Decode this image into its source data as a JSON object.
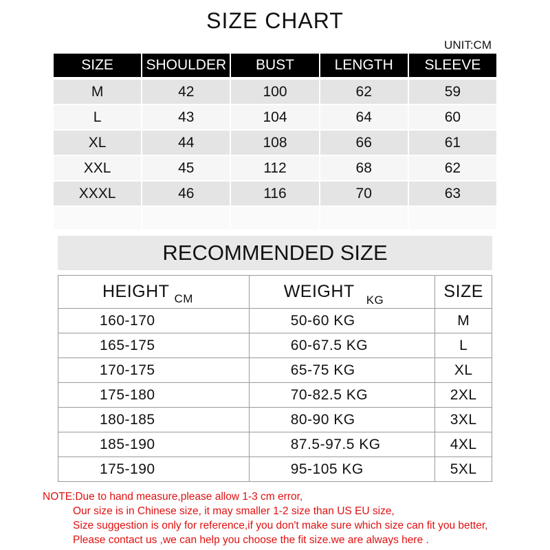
{
  "size_chart": {
    "title": "SIZE CHART",
    "unit": "UNIT:CM",
    "headers": [
      "SIZE",
      "SHOULDER",
      "BUST",
      "LENGTH",
      "SLEEVE"
    ],
    "rows": [
      [
        "M",
        "42",
        "100",
        "62",
        "59"
      ],
      [
        "L",
        "43",
        "104",
        "64",
        "60"
      ],
      [
        "XL",
        "44",
        "108",
        "66",
        "61"
      ],
      [
        "XXL",
        "45",
        "112",
        "68",
        "62"
      ],
      [
        "XXXL",
        "46",
        "116",
        "70",
        "63"
      ]
    ]
  },
  "recommended": {
    "title": "RECOMMENDED SIZE",
    "headers": {
      "height": "HEIGHT",
      "height_unit": "CM",
      "weight": "WEIGHT",
      "weight_unit": "KG",
      "size": "SIZE"
    },
    "rows": [
      [
        "160-170",
        "50-60 KG",
        "M"
      ],
      [
        "165-175",
        "60-67.5 KG",
        "L"
      ],
      [
        "170-175",
        "65-75 KG",
        "XL"
      ],
      [
        "175-180",
        "70-82.5 KG",
        "2XL"
      ],
      [
        "180-185",
        "80-90 KG",
        "3XL"
      ],
      [
        "185-190",
        "87.5-97.5 KG",
        "4XL"
      ],
      [
        "175-190",
        "95-105 KG",
        "5XL"
      ]
    ]
  },
  "note": [
    "NOTE:Due to hand measure,please allow 1-3 cm error,",
    "Our size is in Chinese size, it may smaller 1-2 size than US EU size,",
    "Size suggestion is only for reference,if you don't make sure which size can fit you better,",
    "Please contact  us ,we can help you choose the fit size.we are  always here ."
  ],
  "colors": {
    "header_bg": "#000000",
    "note_text": "#e01010"
  }
}
